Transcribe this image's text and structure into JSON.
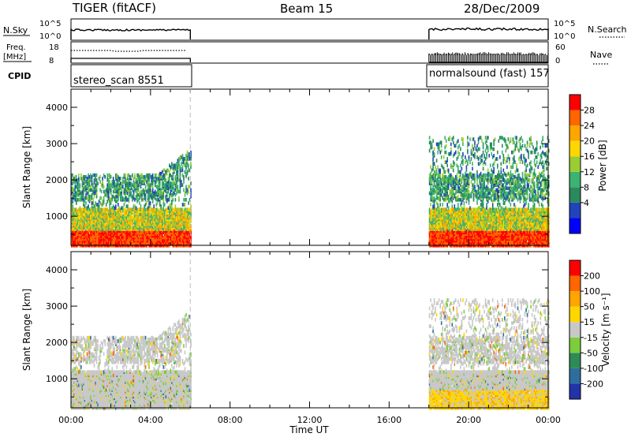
{
  "header": {
    "radar": "TIGER (fitACF)",
    "beam": "Beam 15",
    "date": "28/Dec/2009"
  },
  "status_panels": {
    "nsky_label": "N.Sky",
    "nsky_ticks": [
      "10^5",
      "10^0"
    ],
    "nsearch_label": "N.Search",
    "freq_label_line1": "Freq.",
    "freq_label_line2": "[MHz]",
    "freq_ticks": [
      "18",
      "8"
    ],
    "nave_ticks": [
      "60",
      "0"
    ],
    "nave_label": "Nave",
    "cpid_label": "CPID",
    "cpid_left": "stereo_scan 8551",
    "cpid_right": "normalsound (fast) 157"
  },
  "chart_data": [
    {
      "type": "heatmap",
      "name": "power",
      "ylabel": "Slant Range [km]",
      "yticks": [
        1000,
        2000,
        3000,
        4000
      ],
      "ylim": [
        200,
        4500
      ],
      "xlim_hours": [
        0,
        24
      ],
      "colorbar_label": "Power [dB]",
      "colorbar_ticks": [
        "28",
        "24",
        "20",
        "16",
        "12",
        "8",
        "4"
      ],
      "colorbar_colors": [
        "#0000ff",
        "#2244bb",
        "#2a8a5e",
        "#3cb371",
        "#9acd32",
        "#ffd700",
        "#ffa500",
        "#ff6600",
        "#ff0000"
      ],
      "data_segments_hours": [
        [
          0,
          6
        ],
        [
          18,
          24
        ]
      ]
    },
    {
      "type": "heatmap",
      "name": "velocity",
      "ylabel": "Slant Range [km]",
      "yticks": [
        1000,
        2000,
        3000,
        4000
      ],
      "ylim": [
        200,
        4500
      ],
      "xlim_hours": [
        0,
        24
      ],
      "xticks": [
        "00:00",
        "04:00",
        "08:00",
        "12:00",
        "16:00",
        "20:00",
        "00:00"
      ],
      "xlabel": "Time UT",
      "colorbar_label": "Velocity [m s⁻¹]",
      "colorbar_ticks": [
        "200",
        "100",
        "50",
        "15",
        "-15",
        "-50",
        "-100",
        "-200"
      ],
      "colorbar_colors": [
        "#2233aa",
        "#2e6e9e",
        "#2e8b57",
        "#7ccd3c",
        "#c8c8c8",
        "#ffd700",
        "#ffa500",
        "#ff6600",
        "#ff0000"
      ],
      "data_segments_hours": [
        [
          0,
          6
        ],
        [
          18,
          24
        ]
      ]
    }
  ]
}
